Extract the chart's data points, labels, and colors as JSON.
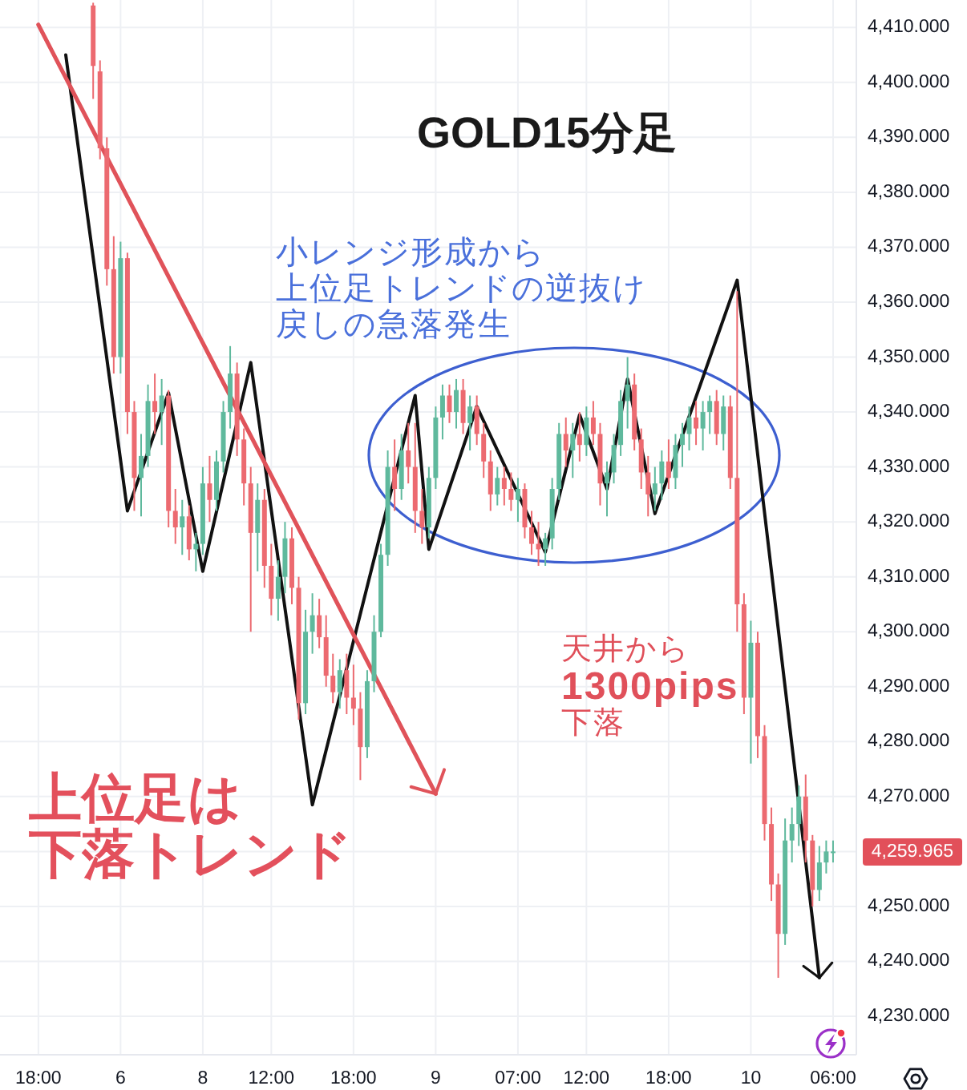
{
  "chart_data": {
    "type": "candlestick",
    "title": "GOLD15分足",
    "categories": [
      "18:00",
      null,
      null,
      null,
      null,
      null,
      null,
      null,
      null,
      null,
      null,
      null,
      "6",
      null,
      null,
      null,
      null,
      null,
      null,
      null,
      null,
      null,
      null,
      null,
      "8",
      null,
      null,
      null,
      null,
      null,
      null,
      null,
      null,
      null,
      "12:00",
      null,
      null,
      null,
      null,
      null,
      null,
      null,
      null,
      null,
      null,
      null,
      "18:00",
      null,
      null,
      null,
      null,
      null,
      null,
      null,
      null,
      null,
      null,
      null,
      "9",
      null,
      null,
      null,
      null,
      null,
      null,
      null,
      null,
      null,
      null,
      null,
      "07:00",
      null,
      null,
      null,
      null,
      null,
      null,
      null,
      null,
      null,
      "12:00",
      null,
      null,
      null,
      null,
      null,
      null,
      null,
      null,
      null,
      null,
      null,
      "18:00",
      null,
      null,
      null,
      null,
      null,
      null,
      null,
      null,
      null,
      null,
      null,
      "10",
      null,
      null,
      null,
      null,
      null,
      null,
      null,
      null,
      null,
      null,
      null,
      "06:00"
    ],
    "ohlc": [
      null,
      null,
      null,
      null,
      null,
      null,
      null,
      null,
      [
        4414,
        4414.5,
        4397,
        4403
      ],
      [
        4402,
        4404,
        4386,
        4388
      ],
      [
        4388,
        4390,
        4363,
        4366
      ],
      [
        4366,
        4372,
        4347,
        4350
      ],
      [
        4350,
        4371,
        4347,
        4368
      ],
      [
        4368,
        4369,
        4336,
        4340
      ],
      [
        4340,
        4342,
        4322,
        4328
      ],
      [
        4328,
        4336,
        4321,
        4332
      ],
      [
        4332,
        4345,
        4330,
        4342
      ],
      [
        4342,
        4347,
        4336,
        4340
      ],
      [
        4340,
        4346,
        4334,
        4343
      ],
      [
        4343,
        4344,
        4319,
        4322
      ],
      [
        4322,
        4326,
        4316,
        4319
      ],
      [
        4319,
        4324,
        4314,
        4321
      ],
      [
        4321,
        4323,
        4313,
        4315
      ],
      [
        4315,
        4318,
        4311,
        4316
      ],
      [
        4316,
        4330,
        4314,
        4327
      ],
      [
        4327,
        4332,
        4320,
        4324
      ],
      [
        4324,
        4333,
        4322,
        4331
      ],
      [
        4331,
        4342,
        4329,
        4340
      ],
      [
        4340,
        4352,
        4337,
        4347
      ],
      [
        4347,
        4349,
        4332,
        4335
      ],
      [
        4335,
        4337,
        4323,
        4327
      ],
      [
        4327,
        4330,
        4300,
        4318
      ],
      [
        4318,
        4327,
        4311,
        4324
      ],
      [
        4324,
        4326,
        4308,
        4312
      ],
      [
        4312,
        4316,
        4303,
        4306
      ],
      [
        4306,
        4313,
        4302,
        4310
      ],
      [
        4310,
        4320,
        4307,
        4317
      ],
      [
        4317,
        4319,
        4305,
        4308
      ],
      [
        4308,
        4310,
        4284,
        4287
      ],
      [
        4287,
        4304,
        4285,
        4300
      ],
      [
        4300,
        4307,
        4296,
        4303
      ],
      [
        4303,
        4306,
        4297,
        4299
      ],
      [
        4299,
        4303,
        4290,
        4292
      ],
      [
        4292,
        4296,
        4287,
        4289
      ],
      [
        4289,
        4295,
        4286,
        4293
      ],
      [
        4293,
        4296,
        4285,
        4288
      ],
      [
        4288,
        4294,
        4283,
        4286
      ],
      [
        4286,
        4289,
        4273,
        4279
      ],
      [
        4279,
        4293,
        4277,
        4291
      ],
      [
        4291,
        4303,
        4289,
        4300
      ],
      [
        4300,
        4316,
        4299,
        4314
      ],
      [
        4314,
        4333,
        4312,
        4330
      ],
      [
        4330,
        4335,
        4322,
        4326
      ],
      [
        4326,
        4336,
        4324,
        4333
      ],
      [
        4333,
        4338,
        4327,
        4330
      ],
      [
        4330,
        4338,
        4318,
        4322
      ],
      [
        4322,
        4326,
        4316,
        4319
      ],
      [
        4319,
        4330,
        4317,
        4328
      ],
      [
        4328,
        4341,
        4326,
        4339
      ],
      [
        4339,
        4345,
        4335,
        4343
      ],
      [
        4343,
        4345,
        4338,
        4340
      ],
      [
        4340,
        4346,
        4337,
        4344
      ],
      [
        4344,
        4346,
        4336,
        4338
      ],
      [
        4338,
        4343,
        4333,
        4341
      ],
      [
        4341,
        4343,
        4334,
        4336
      ],
      [
        4336,
        4338,
        4328,
        4331
      ],
      [
        4331,
        4333,
        4322,
        4325
      ],
      [
        4325,
        4330,
        4323,
        4328
      ],
      [
        4328,
        4330,
        4323,
        4326
      ],
      [
        4326,
        4329,
        4322,
        4324
      ],
      [
        4324,
        4328,
        4320,
        4326
      ],
      [
        4326,
        4327,
        4317,
        4319
      ],
      [
        4319,
        4322,
        4314,
        4316
      ],
      [
        4316,
        4320,
        4312,
        4315
      ],
      [
        4315,
        4318,
        4312,
        4317
      ],
      [
        4317,
        4328,
        4315,
        4326
      ],
      [
        4326,
        4338,
        4324,
        4336
      ],
      [
        4336,
        4339,
        4330,
        4333
      ],
      [
        4333,
        4338,
        4328,
        4336
      ],
      [
        4336,
        4340,
        4331,
        4334
      ],
      [
        4334,
        4341,
        4332,
        4339
      ],
      [
        4339,
        4342,
        4334,
        4336
      ],
      [
        4336,
        4338,
        4323,
        4327
      ],
      [
        4327,
        4331,
        4321,
        4329
      ],
      [
        4329,
        4336,
        4327,
        4334
      ],
      [
        4334,
        4344,
        4332,
        4342
      ],
      [
        4342,
        4350,
        4337,
        4345
      ],
      [
        4345,
        4347,
        4333,
        4335
      ],
      [
        4335,
        4337,
        4326,
        4329
      ],
      [
        4329,
        4332,
        4321,
        4325
      ],
      [
        4325,
        4330,
        4322,
        4327
      ],
      [
        4327,
        4333,
        4324,
        4331
      ],
      [
        4331,
        4335,
        4326,
        4328
      ],
      [
        4328,
        4336,
        4326,
        4334
      ],
      [
        4334,
        4338,
        4330,
        4336
      ],
      [
        4336,
        4341,
        4333,
        4339
      ],
      [
        4339,
        4342,
        4334,
        4337
      ],
      [
        4337,
        4342,
        4333,
        4340
      ],
      [
        4340,
        4343,
        4336,
        4342
      ],
      [
        4342,
        4344,
        4334,
        4336
      ],
      [
        4336,
        4343,
        4333,
        4341
      ],
      [
        4341,
        4343,
        4326,
        4328
      ],
      [
        4328,
        4362,
        4300,
        4305
      ],
      [
        4305,
        4307,
        4285,
        4288
      ],
      [
        4288,
        4302,
        4276,
        4298
      ],
      [
        4298,
        4300,
        4277,
        4281
      ],
      [
        4281,
        4283,
        4262,
        4265
      ],
      [
        4265,
        4268,
        4251,
        4254
      ],
      [
        4254,
        4256,
        4237,
        4245
      ],
      [
        4245,
        4266,
        4243,
        4262
      ],
      [
        4262,
        4268,
        4258,
        4265
      ],
      [
        4265,
        4272,
        4261,
        4270
      ],
      [
        4270,
        4274,
        4258,
        4262
      ],
      [
        4262,
        4263,
        4250,
        4253
      ],
      [
        4253,
        4261,
        4251,
        4258
      ],
      [
        4258,
        4262,
        4256,
        4260
      ],
      [
        4260,
        4262,
        4258,
        4260
      ]
    ],
    "colors": [
      null,
      null,
      null,
      null,
      null,
      null,
      null,
      null,
      "#ec6a70",
      "#ec6a70",
      "#ec6a70",
      "#ec6a70",
      "#5fb99d",
      "#ec6a70",
      "#ec6a70",
      "#5fb99d",
      "#5fb99d",
      "#ec6a70",
      "#5fb99d",
      "#ec6a70",
      "#ec6a70",
      "#5fb99d",
      "#ec6a70",
      "#5fb99d",
      "#5fb99d",
      "#ec6a70",
      "#5fb99d",
      "#5fb99d",
      "#5fb99d",
      "#ec6a70",
      "#ec6a70",
      "#ec6a70",
      "#5fb99d",
      "#ec6a70",
      "#ec6a70",
      "#5fb99d",
      "#5fb99d",
      "#ec6a70",
      "#ec6a70",
      "#5fb99d",
      "#5fb99d",
      "#ec6a70",
      "#ec6a70",
      "#ec6a70",
      "#5fb99d",
      "#ec6a70",
      "#ec6a70",
      "#ec6a70",
      "#5fb99d",
      "#5fb99d",
      "#5fb99d",
      "#5fb99d",
      "#ec6a70",
      "#5fb99d",
      "#ec6a70",
      "#ec6a70",
      "#ec6a70",
      "#5fb99d",
      "#5fb99d",
      "#5fb99d",
      "#ec6a70",
      "#5fb99d",
      "#ec6a70",
      "#5fb99d",
      "#ec6a70",
      "#ec6a70",
      "#ec6a70",
      "#5fb99d",
      "#ec6a70",
      "#ec6a70",
      "#5fb99d",
      "#ec6a70",
      "#ec6a70",
      "#ec6a70",
      "#5fb99d",
      "#5fb99d",
      "#5fb99d",
      "#ec6a70",
      "#5fb99d",
      "#ec6a70",
      "#5fb99d",
      "#ec6a70",
      "#ec6a70",
      "#5fb99d",
      "#5fb99d",
      "#5fb99d",
      "#5fb99d",
      "#ec6a70",
      "#ec6a70",
      "#ec6a70",
      "#5fb99d",
      "#5fb99d",
      "#ec6a70",
      "#5fb99d",
      "#5fb99d",
      "#5fb99d",
      "#ec6a70",
      "#5fb99d",
      "#5fb99d",
      "#ec6a70",
      "#5fb99d",
      "#ec6a70",
      "#ec6a70",
      "#ec6a70",
      "#5fb99d",
      "#ec6a70",
      "#ec6a70",
      "#ec6a70",
      "#ec6a70",
      "#5fb99d",
      "#5fb99d",
      "#5fb99d",
      "#ec6a70",
      "#ec6a70",
      "#5fb99d",
      "#5fb99d",
      "#5fb99d"
    ],
    "series": [
      {
        "type": "line",
        "color": "#111111",
        "values": [
          null,
          null,
          null,
          null,
          4405,
          null,
          null,
          null,
          null,
          null,
          null,
          null,
          null,
          4322,
          null,
          null,
          null,
          null,
          null,
          4343.5,
          null,
          null,
          null,
          null,
          4311,
          null,
          null,
          null,
          null,
          null,
          null,
          4349,
          null,
          null,
          null,
          null,
          null,
          null,
          null,
          null,
          4268.5,
          null,
          null,
          null,
          null,
          null,
          null,
          null,
          null,
          null,
          null,
          null,
          null,
          null,
          null,
          4343,
          null,
          4315,
          null,
          null,
          null,
          null,
          null,
          null,
          4341,
          null,
          null,
          null,
          null,
          null,
          null,
          null,
          null,
          null,
          4314.5,
          null,
          null,
          null,
          null,
          4339.5,
          null,
          null,
          null,
          4326,
          null,
          null,
          4346,
          null,
          null,
          null,
          4321.5,
          null,
          null,
          null,
          null,
          null,
          null,
          null,
          null,
          null,
          null,
          null,
          4364,
          null,
          null,
          null,
          null,
          null,
          null,
          null,
          null,
          null,
          null,
          null,
          4237,
          null,
          null
        ]
      },
      {
        "type": "line",
        "color": "#e0535a",
        "values": [
          4410.5,
          null,
          null,
          null,
          null,
          null,
          null,
          null,
          null,
          null,
          null,
          null,
          null,
          null,
          null,
          null,
          null,
          null,
          null,
          null,
          null,
          null,
          null,
          null,
          null,
          null,
          null,
          null,
          null,
          null,
          null,
          null,
          null,
          null,
          null,
          null,
          null,
          null,
          null,
          null,
          null,
          null,
          null,
          null,
          null,
          null,
          null,
          null,
          null,
          null,
          null,
          null,
          null,
          null,
          null,
          null,
          null,
          null,
          4270.5,
          null,
          null,
          null,
          null,
          null,
          null,
          null,
          null,
          null,
          null,
          null,
          null,
          null,
          null,
          null,
          null,
          null,
          null,
          null,
          null,
          null,
          null,
          null,
          null,
          null,
          null,
          null,
          null,
          null,
          null,
          null,
          null,
          null,
          null,
          null,
          null,
          null,
          null,
          null,
          null,
          null,
          null,
          null,
          null,
          null,
          null,
          null,
          null,
          null,
          null,
          null,
          null,
          null,
          null,
          null,
          null,
          null,
          null
        ]
      }
    ],
    "ylim": [
      4223,
      4415
    ],
    "yticks": [
      {
        "value": 4230,
        "label": "4,230.000"
      },
      {
        "value": 4240,
        "label": "4,240.000"
      },
      {
        "value": 4250,
        "label": "4,250.000"
      },
      {
        "value": 4260,
        "label": null
      },
      {
        "value": 4270,
        "label": "4,270.000"
      },
      {
        "value": 4280,
        "label": "4,280.000"
      },
      {
        "value": 4290,
        "label": "4,290.000"
      },
      {
        "value": 4300,
        "label": "4,300.000"
      },
      {
        "value": 4310,
        "label": "4,310.000"
      },
      {
        "value": 4320,
        "label": "4,320.000"
      },
      {
        "value": 4330,
        "label": "4,330.000"
      },
      {
        "value": 4340,
        "label": "4,340.000"
      },
      {
        "value": 4350,
        "label": "4,350.000"
      },
      {
        "value": 4360,
        "label": "4,360.000"
      },
      {
        "value": 4370,
        "label": "4,370.000"
      },
      {
        "value": 4380,
        "label": "4,380.000"
      },
      {
        "value": 4390,
        "label": "4,390.000"
      },
      {
        "value": 4400,
        "label": "4,400.000"
      },
      {
        "value": 4410,
        "label": "4,410.000"
      }
    ],
    "grid": true,
    "annotations": [
      "小レンジ形成から上位足トレンドの逆抜け戻しの急落発生",
      "天井から1300pips下落",
      "上位足は下落トレンド",
      "4,259.965"
    ]
  }
}
